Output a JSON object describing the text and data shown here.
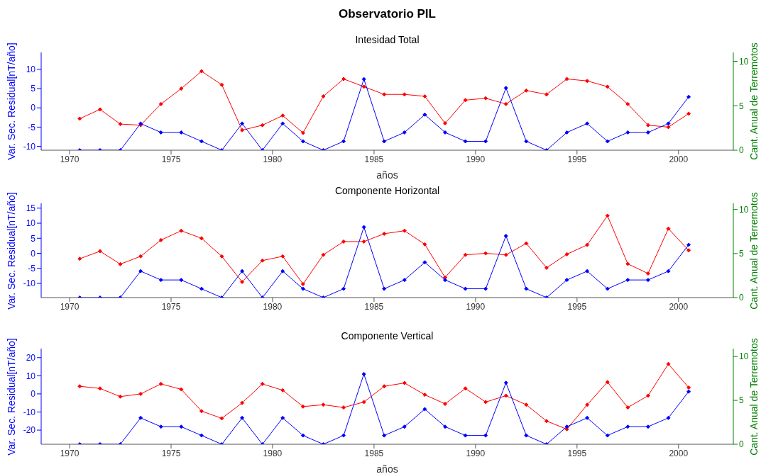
{
  "chart_data": [
    {
      "type": "line",
      "title": "Observatorio PIL",
      "subtitle": "Intesidad Total",
      "xlabel": "años",
      "ylabel": "Var. Sec. Residual[nT/año]",
      "y2label": "Cant. Anual de Terremotos",
      "x": [
        1970.5,
        1971.5,
        1972.5,
        1973.5,
        1974.5,
        1975.5,
        1976.5,
        1977.5,
        1978.5,
        1979.5,
        1980.5,
        1981.5,
        1982.5,
        1983.5,
        1984.5,
        1985.5,
        1986.5,
        1987.5,
        1988.5,
        1989.5,
        1990.5,
        1991.5,
        1992.5,
        1993.5,
        1994.5,
        1995.5,
        1996.5,
        1997.5,
        1998.5,
        1999.5,
        2000.5
      ],
      "xlim": [
        1968.6,
        2002.7
      ],
      "xticks": [
        1970,
        1975,
        1980,
        1985,
        1990,
        1995,
        2000
      ],
      "ylim": [
        -11,
        14.4
      ],
      "yticks": [
        -10,
        -5,
        0,
        5,
        10
      ],
      "y2lim": [
        0,
        11
      ],
      "y2ticks": [
        0,
        5,
        10
      ],
      "marker": "diamond",
      "grid": false,
      "legend": false,
      "series": [
        {
          "color": "#ff0000",
          "values": [
            -2.8,
            -0.4,
            -4.2,
            -4.5,
            1.0,
            5.0,
            9.5,
            6.0,
            -5.8,
            -4.5,
            -2.0,
            -6.5,
            3.0,
            7.5,
            5.5,
            3.5,
            3.5,
            3.0,
            -4.0,
            2.0,
            2.5,
            1.0,
            4.5,
            3.5,
            7.5,
            7.0,
            5.5,
            1.0,
            -4.5,
            -5.0,
            -1.5
          ]
        },
        {
          "color": "#0000ff",
          "axis": "y2",
          "values": [
            0,
            0,
            0,
            3,
            2,
            2,
            1,
            0,
            3,
            0,
            3,
            1,
            0,
            1,
            8,
            1,
            2,
            4,
            2,
            1,
            1,
            7,
            1,
            0,
            2,
            3,
            1,
            2,
            2,
            3,
            6
          ]
        }
      ]
    },
    {
      "type": "line",
      "title": "Componente Horizontal",
      "ylabel": "Var. Sec. Residual[nT/año]",
      "y2label": "Cant. Anual de Terremotos",
      "x": [
        1970.5,
        1971.5,
        1972.5,
        1973.5,
        1974.5,
        1975.5,
        1976.5,
        1977.5,
        1978.5,
        1979.5,
        1980.5,
        1981.5,
        1982.5,
        1983.5,
        1984.5,
        1985.5,
        1986.5,
        1987.5,
        1988.5,
        1989.5,
        1990.5,
        1991.5,
        1992.5,
        1993.5,
        1994.5,
        1995.5,
        1996.5,
        1997.5,
        1998.5,
        1999.5,
        2000.5
      ],
      "xlim": [
        1968.6,
        2002.7
      ],
      "xticks": [
        1970,
        1975,
        1980,
        1985,
        1990,
        1995,
        2000
      ],
      "ylim": [
        -14.7,
        16.6
      ],
      "yticks": [
        -10,
        -5,
        0,
        5,
        10,
        15
      ],
      "y2lim": [
        0,
        10.7
      ],
      "y2ticks": [
        0,
        5,
        10
      ],
      "marker": "diamond",
      "grid": false,
      "legend": false,
      "series": [
        {
          "color": "#ff0000",
          "values": [
            -1.8,
            0.7,
            -3.6,
            -1.0,
            4.4,
            7.5,
            5.0,
            -1.0,
            -9.5,
            -2.4,
            -1.0,
            -10.2,
            -0.5,
            3.9,
            3.9,
            6.5,
            7.5,
            3.0,
            -8.0,
            -0.5,
            0.0,
            -0.5,
            3.3,
            -4.8,
            -0.3,
            2.8,
            12.5,
            -3.5,
            -6.7,
            8.2,
            1.0
          ]
        },
        {
          "color": "#0000ff",
          "axis": "y2",
          "values": [
            0,
            0,
            0,
            3,
            2,
            2,
            1,
            0,
            3,
            0,
            3,
            1,
            0,
            1,
            8,
            1,
            2,
            4,
            2,
            1,
            1,
            7,
            1,
            0,
            2,
            3,
            1,
            2,
            2,
            3,
            6
          ]
        }
      ]
    },
    {
      "type": "line",
      "title": "Componente Vertical",
      "xlabel": "años",
      "ylabel": "Var. Sec. Residual[nT/año]",
      "y2label": "Cant. Anual de Terremotos",
      "x": [
        1970.5,
        1971.5,
        1972.5,
        1973.5,
        1974.5,
        1975.5,
        1976.5,
        1977.5,
        1978.5,
        1979.5,
        1980.5,
        1981.5,
        1982.5,
        1983.5,
        1984.5,
        1985.5,
        1986.5,
        1987.5,
        1988.5,
        1989.5,
        1990.5,
        1991.5,
        1992.5,
        1993.5,
        1994.5,
        1995.5,
        1996.5,
        1997.5,
        1998.5,
        1999.5,
        2000.5
      ],
      "xlim": [
        1968.6,
        2002.7
      ],
      "xticks": [
        1970,
        1975,
        1980,
        1985,
        1990,
        1995,
        2000
      ],
      "ylim": [
        -27.8,
        25
      ],
      "yticks": [
        -20,
        -10,
        0,
        10,
        20
      ],
      "y2lim": [
        0,
        10.9
      ],
      "y2ticks": [
        0,
        5,
        10
      ],
      "marker": "diamond",
      "grid": false,
      "legend": false,
      "series": [
        {
          "color": "#ff0000",
          "values": [
            4.2,
            3.0,
            -1.5,
            0.0,
            5.5,
            2.5,
            -9.5,
            -13.5,
            -5.0,
            5.5,
            2.0,
            -7.0,
            -6.0,
            -7.5,
            -4.5,
            4.2,
            6.0,
            -0.5,
            -5.5,
            3.0,
            -4.5,
            -1.0,
            -6.0,
            -15.0,
            -19.5,
            -6.0,
            6.5,
            -7.5,
            -1.0,
            16.5,
            3.5
          ]
        },
        {
          "color": "#0000ff",
          "axis": "y2",
          "values": [
            0,
            0,
            0,
            3,
            2,
            2,
            1,
            0,
            3,
            0,
            3,
            1,
            0,
            1,
            8,
            1,
            2,
            4,
            2,
            1,
            1,
            7,
            1,
            0,
            2,
            3,
            1,
            2,
            2,
            3,
            6
          ]
        }
      ]
    }
  ]
}
